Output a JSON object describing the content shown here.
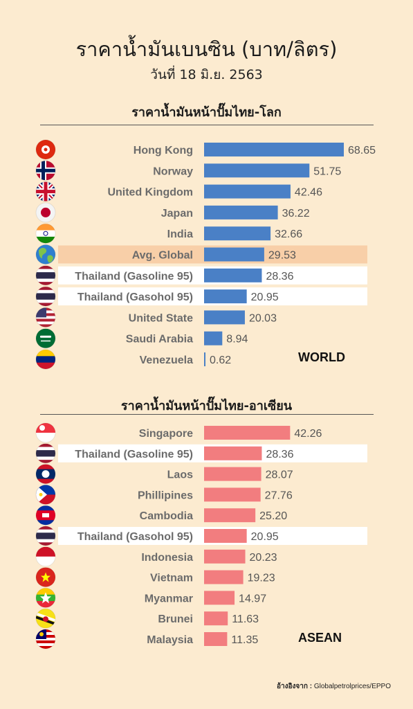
{
  "title": "ราคาน้ำมันเบนซิน (บาท/ลิตร)",
  "subtitle": "วันที่ 18 มิ.ย. 2563",
  "source": {
    "label": "อ้างอิงจาก :",
    "text": "Globalpetrolprices/EPPO"
  },
  "colors": {
    "background": "#fcebd0",
    "world_bar": "#4a80c6",
    "asean_bar": "#f27d7f",
    "highlight_white": "#ffffff",
    "highlight_avg": "#f8cfa8"
  },
  "chart_data": [
    {
      "type": "bar",
      "orientation": "horizontal",
      "title": "ราคาน้ำมันหน้าปั๊มไทย-โลก",
      "tag": "WORLD",
      "categories": [
        "Hong Kong",
        "Norway",
        "United Kingdom",
        "Japan",
        "India",
        "Avg. Global",
        "Thailand (Gasoline 95)",
        "Thailand (Gasohol 95)",
        "United State",
        "Saudi Arabia",
        "Venezuela"
      ],
      "values": [
        68.65,
        51.75,
        42.46,
        36.22,
        32.66,
        29.53,
        28.36,
        20.95,
        20.03,
        8.94,
        0.62
      ],
      "value_labels": [
        "68.65",
        "51.75",
        "42.46",
        "36.22",
        "32.66",
        "29.53",
        "28.36",
        "20.95",
        "20.03",
        "8.94",
        "0.62"
      ],
      "highlights": [
        "none",
        "none",
        "none",
        "none",
        "none",
        "avg",
        "white",
        "white",
        "none",
        "none",
        "none"
      ],
      "flags": [
        "hong-kong-flag-icon",
        "norway-flag-icon",
        "united-kingdom-flag-icon",
        "japan-flag-icon",
        "india-flag-icon",
        "globe-icon",
        "thailand-flag-icon",
        "thailand-flag-icon",
        "united-states-flag-icon",
        "saudi-arabia-flag-icon",
        "venezuela-flag-icon"
      ],
      "color": "#4a80c6"
    },
    {
      "type": "bar",
      "orientation": "horizontal",
      "title": "ราคาน้ำมันหน้าปั๊มไทย-อาเซียน",
      "tag": "ASEAN",
      "categories": [
        "Singapore",
        "Thailand (Gasoline 95)",
        "Laos",
        "Phillipines",
        "Cambodia",
        "Thailand (Gasohol 95)",
        "Indonesia",
        "Vietnam",
        "Myanmar",
        "Brunei",
        "Malaysia"
      ],
      "values": [
        42.26,
        28.36,
        28.07,
        27.76,
        25.2,
        20.95,
        20.23,
        19.23,
        14.97,
        11.63,
        11.35
      ],
      "value_labels": [
        "42.26",
        "28.36",
        "28.07",
        "27.76",
        "25.20",
        "20.95",
        "20.23",
        "19.23",
        "14.97",
        "11.63",
        "11.35"
      ],
      "highlights": [
        "none",
        "white",
        "none",
        "none",
        "none",
        "white",
        "none",
        "none",
        "none",
        "none",
        "none"
      ],
      "flags": [
        "singapore-flag-icon",
        "thailand-flag-icon",
        "laos-flag-icon",
        "philippines-flag-icon",
        "cambodia-flag-icon",
        "thailand-flag-icon",
        "indonesia-flag-icon",
        "vietnam-flag-icon",
        "myanmar-flag-icon",
        "brunei-flag-icon",
        "malaysia-flag-icon"
      ],
      "color": "#f27d7f"
    }
  ]
}
